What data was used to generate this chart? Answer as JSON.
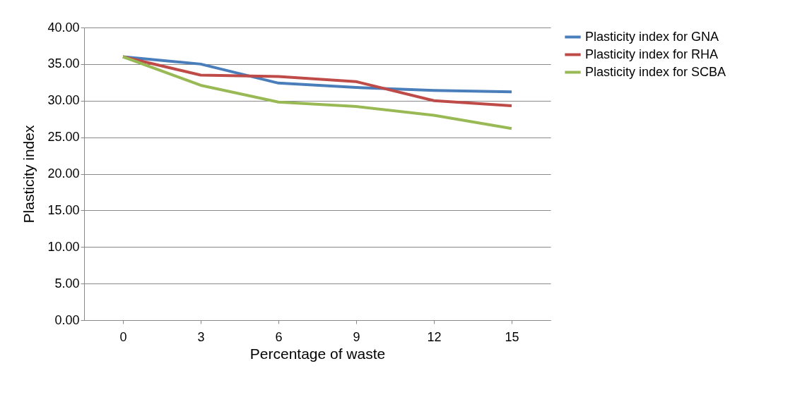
{
  "chart_data": {
    "type": "line",
    "xlabel": "Percentage of waste",
    "ylabel": "Plasticity index",
    "categories": [
      "0",
      "3",
      "6",
      "9",
      "12",
      "15"
    ],
    "series": [
      {
        "name": "Plasticity index for GNA",
        "color": "#4a7ebb",
        "values": [
          36.0,
          35.0,
          32.4,
          31.8,
          31.4,
          31.2
        ]
      },
      {
        "name": "Plasticity index for RHA",
        "color": "#be4b48",
        "values": [
          36.0,
          33.5,
          33.3,
          32.6,
          30.0,
          29.3
        ]
      },
      {
        "name": "Plasticity index for SCBA",
        "color": "#98b954",
        "values": [
          36.0,
          32.1,
          29.8,
          29.2,
          28.0,
          26.2
        ]
      }
    ],
    "ylim": [
      0,
      40
    ],
    "yticks": [
      {
        "value": 0,
        "label": "0.00"
      },
      {
        "value": 5,
        "label": "5.00"
      },
      {
        "value": 10,
        "label": "10.00"
      },
      {
        "value": 15,
        "label": "15.00"
      },
      {
        "value": 20,
        "label": "20.00"
      },
      {
        "value": 25,
        "label": "25.00"
      },
      {
        "value": 30,
        "label": "30.00"
      },
      {
        "value": 35,
        "label": "35.00"
      },
      {
        "value": 40,
        "label": "40.00"
      }
    ],
    "grid": "y",
    "legend": "right",
    "marker": "none",
    "line_style": "solid"
  }
}
